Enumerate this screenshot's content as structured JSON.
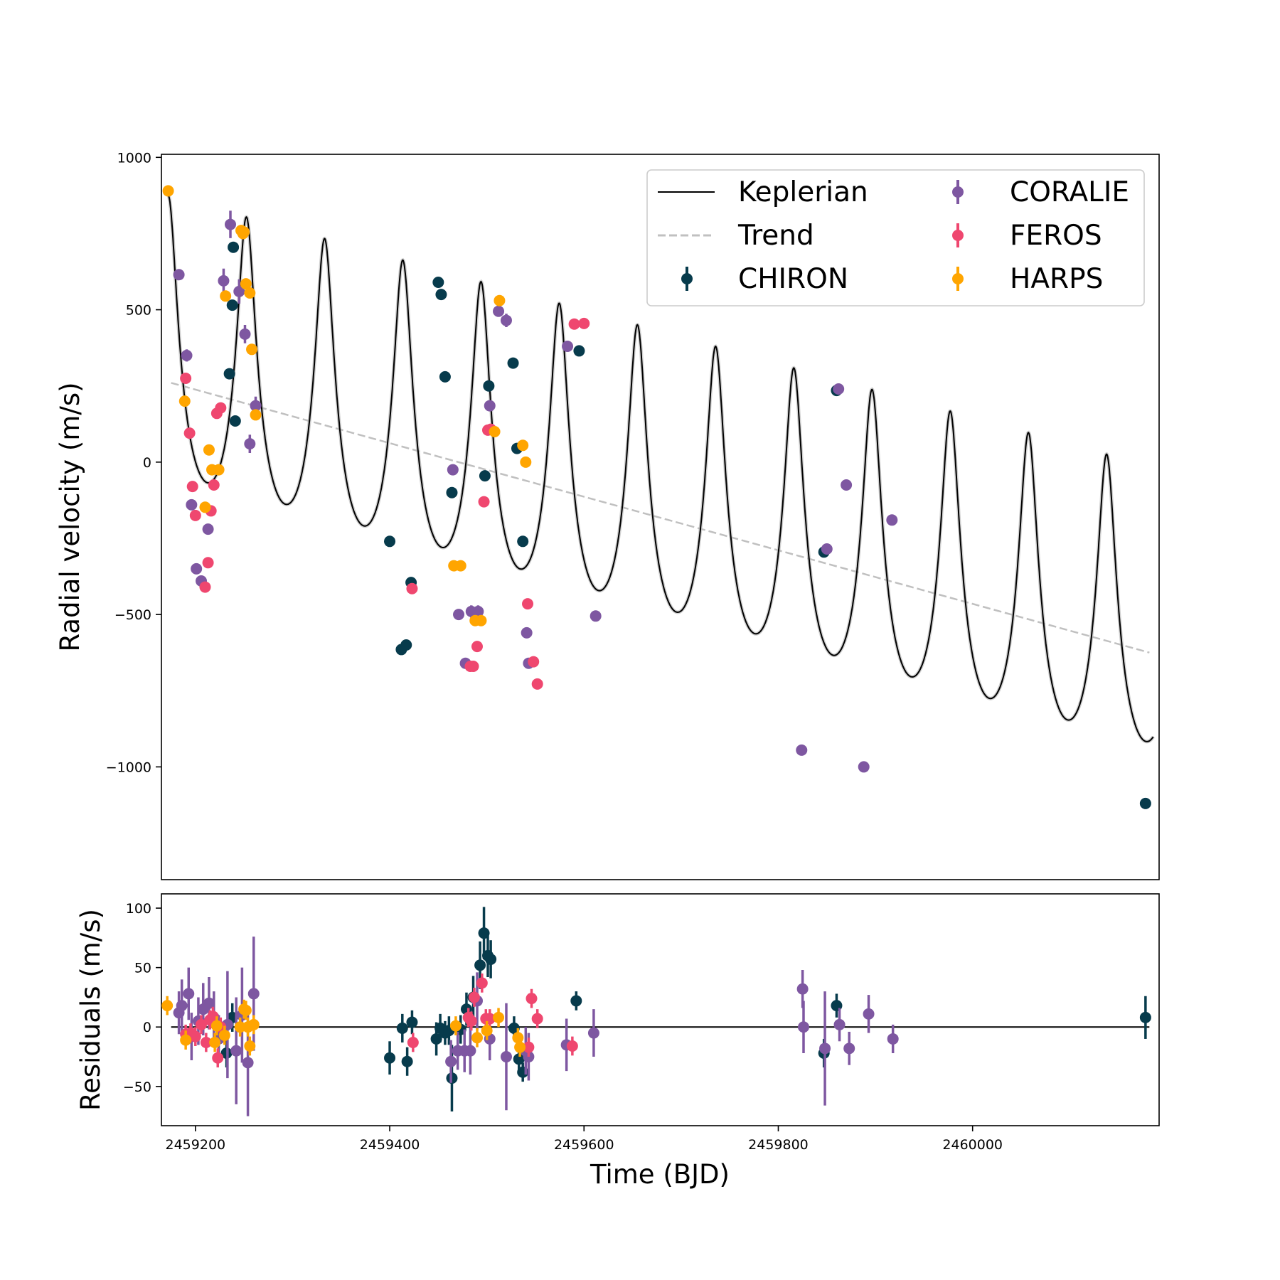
{
  "chart_data": [
    {
      "type": "scatter",
      "panel": "radial-velocity",
      "ylabel": "Radial velocity (m/s)",
      "xlim": [
        2459165,
        2460192
      ],
      "ylim": [
        -1370,
        1010
      ],
      "y_ticks": [
        1000,
        500,
        0,
        -500,
        -1000
      ],
      "y_tick_labels": [
        "1000",
        "500",
        "0",
        "−500",
        "−1000"
      ],
      "legend": {
        "placement": "top-right",
        "entries": [
          "Keplerian",
          "Trend",
          "CHIRON",
          "CORALIE",
          "FEROS",
          "HARPS"
        ]
      },
      "model": {
        "name": "Keplerian",
        "color": "#000000",
        "period_days": 80.5,
        "reference_peak_time": 2459172,
        "reference_peak_value": 875,
        "amplitude_start": 640,
        "amplitude_end": 645
      },
      "trend": {
        "name": "Trend",
        "color": "#c0c0c0",
        "x": [
          2459175,
          2460182
        ],
        "y": [
          260,
          -625
        ]
      },
      "series": [
        {
          "name": "CHIRON",
          "color": "#073b4c",
          "x": [
            2459238,
            2459239,
            2459241,
            2459235,
            2459400,
            2459412,
            2459417,
            2459422,
            2459450,
            2459453,
            2459457,
            2459464,
            2459498,
            2459502,
            2459527,
            2459531,
            2459537,
            2459595,
            2459860,
            2459847,
            2460178
          ],
          "y": [
            515,
            705,
            135,
            290,
            -260,
            -615,
            -600,
            -395,
            590,
            550,
            280,
            -100,
            -45,
            250,
            325,
            45,
            -260,
            365,
            235,
            -295,
            -1120
          ],
          "err": [
            12,
            12,
            12,
            12,
            12,
            12,
            12,
            12,
            12,
            12,
            12,
            12,
            12,
            12,
            12,
            12,
            12,
            12,
            12,
            12,
            18
          ]
        },
        {
          "name": "CORALIE",
          "color": "#7e57a1",
          "x": [
            2459183,
            2459191,
            2459196,
            2459201,
            2459206,
            2459213,
            2459229,
            2459236,
            2459245,
            2459251,
            2459256,
            2459262,
            2459465,
            2459471,
            2459478,
            2459484,
            2459491,
            2459503,
            2459512,
            2459520,
            2459541,
            2459543,
            2459583,
            2459612,
            2459824,
            2459850,
            2459862,
            2459870,
            2459888,
            2459917
          ],
          "y": [
            615,
            350,
            -140,
            -350,
            -390,
            -220,
            595,
            780,
            560,
            420,
            60,
            185,
            -25,
            -500,
            -660,
            -490,
            -490,
            185,
            495,
            465,
            -560,
            -660,
            380,
            -505,
            -945,
            -285,
            240,
            -75,
            -1000,
            -190
          ],
          "err": [
            14,
            20,
            14,
            16,
            14,
            16,
            40,
            45,
            40,
            30,
            30,
            30,
            14,
            16,
            18,
            20,
            20,
            16,
            18,
            22,
            14,
            16,
            16,
            14,
            14,
            14,
            14,
            14,
            14,
            14
          ]
        },
        {
          "name": "FEROS",
          "color": "#ef476f",
          "x": [
            2459190,
            2459194,
            2459197,
            2459200,
            2459210,
            2459213,
            2459216,
            2459219,
            2459222,
            2459226,
            2459423,
            2459483,
            2459486,
            2459490,
            2459497,
            2459501,
            2459504,
            2459542,
            2459548,
            2459552,
            2459590,
            2459600
          ],
          "y": [
            275,
            95,
            -80,
            -175,
            -410,
            -330,
            -160,
            -75,
            160,
            178,
            -415,
            -670,
            -670,
            -605,
            -130,
            105,
            108,
            -465,
            -655,
            -728,
            453,
            455
          ],
          "err": [
            12,
            12,
            12,
            12,
            12,
            12,
            12,
            12,
            12,
            12,
            12,
            12,
            12,
            12,
            12,
            12,
            12,
            12,
            12,
            12,
            12,
            12
          ]
        },
        {
          "name": "HARPS",
          "color": "#ffa500",
          "x": [
            2459172,
            2459189,
            2459210,
            2459214,
            2459217,
            2459224,
            2459231,
            2459247,
            2459249,
            2459250,
            2459252,
            2459256,
            2459258,
            2459262,
            2459466,
            2459473,
            2459488,
            2459494,
            2459508,
            2459513,
            2459537,
            2459540
          ],
          "y": [
            890,
            200,
            -148,
            40,
            -25,
            -25,
            545,
            760,
            750,
            755,
            585,
            555,
            370,
            155,
            -340,
            -340,
            -520,
            -520,
            100,
            530,
            55,
            0
          ],
          "err": [
            8,
            8,
            8,
            8,
            8,
            8,
            8,
            8,
            8,
            8,
            8,
            8,
            8,
            8,
            8,
            8,
            8,
            8,
            8,
            8,
            8,
            8
          ]
        }
      ]
    },
    {
      "type": "scatter",
      "panel": "residuals",
      "xlabel": "Time (BJD)",
      "ylabel": "Residuals (m/s)",
      "xlim": [
        2459165,
        2460192
      ],
      "ylim": [
        -83,
        112
      ],
      "x_ticks": [
        2459200,
        2459400,
        2459600,
        2459800,
        2460000
      ],
      "x_tick_labels": [
        "2459200",
        "2459400",
        "2459600",
        "2459800",
        "2460000"
      ],
      "y_ticks": [
        100,
        50,
        0,
        -50
      ],
      "y_tick_labels": [
        "100",
        "50",
        "0",
        "−50"
      ],
      "zero_line": 0,
      "series": [
        {
          "name": "CHIRON",
          "color": "#073b4c",
          "x": [
            2459232,
            2459238,
            2459400,
            2459413,
            2459418,
            2459423,
            2459448,
            2459452,
            2459457,
            2459461,
            2459464,
            2459473,
            2459479,
            2459486,
            2459493,
            2459497,
            2459501,
            2459504,
            2459528,
            2459533,
            2459537,
            2459592,
            2459847,
            2459860,
            2460178
          ],
          "y": [
            -22,
            8,
            -26,
            -1,
            -29,
            4,
            -10,
            -1,
            -5,
            -3,
            -43,
            -2,
            15,
            25,
            52,
            79,
            60,
            57,
            -1,
            -27,
            -38,
            22,
            -22,
            18,
            8
          ],
          "err": [
            12,
            12,
            14,
            12,
            12,
            10,
            14,
            12,
            10,
            12,
            28,
            12,
            14,
            18,
            20,
            22,
            18,
            16,
            10,
            10,
            8,
            8,
            12,
            10,
            18
          ]
        },
        {
          "name": "CORALIE",
          "color": "#7e57a1",
          "x": [
            2459183,
            2459186,
            2459193,
            2459196,
            2459203,
            2459208,
            2459214,
            2459219,
            2459224,
            2459233,
            2459242,
            2459248,
            2459254,
            2459260,
            2459463,
            2459470,
            2459477,
            2459483,
            2459490,
            2459503,
            2459520,
            2459540,
            2459543,
            2459582,
            2459610,
            2459825,
            2459826,
            2459848,
            2459863,
            2459873,
            2459893,
            2459918
          ],
          "y": [
            12,
            18,
            28,
            -8,
            5,
            15,
            20,
            8,
            -10,
            2,
            -20,
            10,
            -30,
            28,
            -29,
            -20,
            -20,
            -20,
            22,
            -10,
            -25,
            -20,
            -25,
            -15,
            -5,
            32,
            0,
            -18,
            2,
            -18,
            11,
            -10
          ],
          "err": [
            18,
            22,
            22,
            20,
            20,
            22,
            22,
            22,
            20,
            45,
            45,
            40,
            45,
            48,
            18,
            16,
            18,
            20,
            24,
            18,
            45,
            20,
            20,
            22,
            20,
            16,
            22,
            48,
            14,
            14,
            16,
            12
          ]
        },
        {
          "name": "FEROS",
          "color": "#ef476f",
          "x": [
            2459190,
            2459195,
            2459200,
            2459206,
            2459211,
            2459215,
            2459218,
            2459223,
            2459226,
            2459424,
            2459481,
            2459484,
            2459487,
            2459495,
            2459499,
            2459503,
            2459543,
            2459546,
            2459552,
            2459588
          ],
          "y": [
            -6,
            -5,
            -8,
            2,
            -13,
            6,
            9,
            -26,
            0,
            -13,
            8,
            5,
            25,
            37,
            7,
            7,
            -17,
            24,
            7,
            -16
          ],
          "err": [
            8,
            8,
            8,
            8,
            8,
            8,
            8,
            8,
            8,
            8,
            8,
            8,
            8,
            8,
            8,
            8,
            8,
            8,
            8,
            8
          ]
        },
        {
          "name": "HARPS",
          "color": "#ffa500",
          "x": [
            2459171,
            2459190,
            2459220,
            2459222,
            2459230,
            2459246,
            2459250,
            2459252,
            2459254,
            2459256,
            2459260,
            2459468,
            2459490,
            2459500,
            2459512,
            2459532,
            2459534
          ],
          "y": [
            18,
            -11,
            -13,
            1,
            -7,
            0,
            15,
            14,
            0,
            -16,
            2,
            1,
            -9,
            -3,
            8,
            -9,
            -17
          ],
          "err": [
            8,
            8,
            8,
            8,
            8,
            8,
            8,
            8,
            8,
            8,
            8,
            8,
            8,
            8,
            8,
            8,
            8
          ]
        }
      ]
    }
  ]
}
